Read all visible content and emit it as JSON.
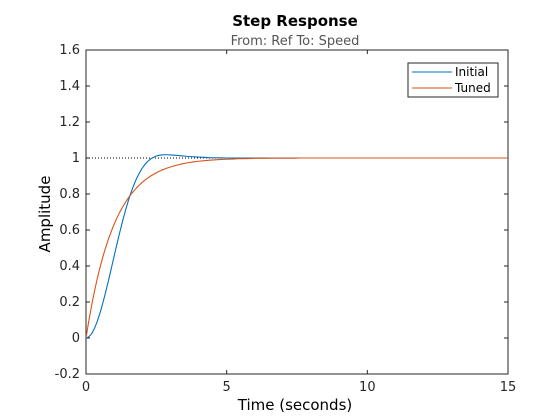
{
  "chart_data": {
    "type": "line",
    "title": "Step Response",
    "subtitle": "From: Ref  To: Speed",
    "xlabel": "Time (seconds)",
    "ylabel": "Amplitude",
    "xlim": [
      0,
      15
    ],
    "ylim": [
      -0.2,
      1.6
    ],
    "xticks": [
      "0",
      "5",
      "10",
      "15"
    ],
    "yticks": [
      "-0.2",
      "0",
      "0.2",
      "0.4",
      "0.6",
      "0.8",
      "1",
      "1.2",
      "1.4",
      "1.6"
    ],
    "grid": false,
    "legend_location": "top-right",
    "reference_line": {
      "y": 1,
      "style": "dotted",
      "color": "#000000"
    },
    "series": [
      {
        "name": "Initial",
        "color": "#0072BD",
        "x": [
          0,
          0.1,
          0.2,
          0.3,
          0.4,
          0.5,
          0.6,
          0.7,
          0.8,
          0.9,
          1.0,
          1.1,
          1.2,
          1.3,
          1.4,
          1.5,
          1.6,
          1.7,
          1.8,
          1.9,
          2.0,
          2.1,
          2.2,
          2.3,
          2.4,
          2.5,
          2.6,
          2.7,
          2.8,
          2.9,
          3.0,
          3.2,
          3.4,
          3.6,
          3.8,
          4.0,
          4.2,
          4.4,
          4.6,
          4.8,
          5.0,
          5.2,
          5.4,
          5.6,
          5.8,
          6.0,
          6.2,
          6.4,
          6.6,
          6.8,
          7.0,
          7.2,
          7.4,
          7.6,
          7.8,
          8.0,
          8.2,
          8.4,
          8.6,
          8.8,
          9.0,
          9.2,
          9.4,
          9.6,
          9.8,
          10.0,
          10.2,
          10.4,
          10.6,
          10.8,
          11.0,
          11.2,
          11.4,
          11.6,
          11.8,
          12.0,
          12.2,
          12.4,
          12.6,
          12.8,
          13.0,
          13.2,
          13.4,
          13.6,
          13.8,
          14.0,
          14.2,
          14.4,
          14.6,
          14.8,
          15.0
        ],
        "y": [
          0.0,
          0.006,
          0.024,
          0.053,
          0.092,
          0.14,
          0.195,
          0.256,
          0.32,
          0.387,
          0.455,
          0.522,
          0.587,
          0.649,
          0.707,
          0.76,
          0.808,
          0.85,
          0.887,
          0.918,
          0.944,
          0.965,
          0.982,
          0.995,
          1.004,
          1.011,
          1.015,
          1.017,
          1.018,
          1.018,
          1.017,
          1.015,
          1.012,
          1.009,
          1.007,
          1.005,
          1.004,
          1.002,
          1.001,
          1.001,
          1.0,
          1.0,
          1.0,
          1.0,
          1.0,
          1.0,
          1.0,
          1.0,
          1.0,
          1.0,
          1.0,
          1.0,
          1.0,
          1.0,
          1.0,
          1.0,
          1.0,
          1.0,
          1.0,
          1.0,
          1.0,
          1.0,
          1.0,
          1.0,
          1.0,
          1.0,
          1.0,
          1.0,
          1.0,
          1.0,
          1.0,
          1.0,
          1.0,
          1.0,
          1.0,
          1.0,
          1.0,
          1.0,
          1.0,
          1.0,
          1.0,
          1.0,
          1.0,
          1.0,
          1.0,
          1.0,
          1.0,
          1.0,
          1.0,
          1.0,
          1.0
        ]
      },
      {
        "name": "Tuned",
        "color": "#D95319",
        "x": [
          0,
          0.1,
          0.2,
          0.3,
          0.4,
          0.5,
          0.6,
          0.7,
          0.8,
          0.9,
          1.0,
          1.1,
          1.2,
          1.3,
          1.4,
          1.5,
          1.6,
          1.7,
          1.8,
          1.9,
          2.0,
          2.1,
          2.2,
          2.3,
          2.4,
          2.5,
          2.6,
          2.7,
          2.8,
          2.9,
          3.0,
          3.2,
          3.4,
          3.6,
          3.8,
          4.0,
          4.2,
          4.4,
          4.6,
          4.8,
          5.0,
          5.2,
          5.4,
          5.6,
          5.8,
          6.0,
          6.2,
          6.4,
          6.6,
          6.8,
          7.0,
          7.2,
          7.4,
          7.6,
          7.8,
          8.0,
          8.2,
          8.4,
          8.6,
          8.8,
          9.0,
          9.2,
          9.4,
          9.6,
          9.8,
          10.0,
          10.2,
          10.4,
          10.6,
          10.8,
          11.0,
          11.2,
          11.4,
          11.6,
          11.8,
          12.0,
          12.2,
          12.4,
          12.6,
          12.8,
          13.0,
          13.2,
          13.4,
          13.6,
          13.8,
          14.0,
          14.2,
          14.4,
          14.6,
          14.8,
          15.0
        ],
        "y": [
          0.0,
          0.095,
          0.181,
          0.259,
          0.33,
          0.393,
          0.451,
          0.503,
          0.551,
          0.593,
          0.632,
          0.667,
          0.699,
          0.727,
          0.753,
          0.777,
          0.798,
          0.817,
          0.835,
          0.85,
          0.865,
          0.878,
          0.889,
          0.9,
          0.909,
          0.918,
          0.926,
          0.933,
          0.939,
          0.945,
          0.95,
          0.959,
          0.967,
          0.973,
          0.978,
          0.982,
          0.985,
          0.988,
          0.99,
          0.992,
          0.993,
          0.994,
          0.996,
          0.996,
          0.997,
          0.998,
          0.998,
          0.998,
          0.999,
          0.999,
          0.999,
          0.999,
          0.999,
          1.0,
          1.0,
          1.0,
          1.0,
          1.0,
          1.0,
          1.0,
          1.0,
          1.0,
          1.0,
          1.0,
          1.0,
          1.0,
          1.0,
          1.0,
          1.0,
          1.0,
          1.0,
          1.0,
          1.0,
          1.0,
          1.0,
          1.0,
          1.0,
          1.0,
          1.0,
          1.0,
          1.0,
          1.0,
          1.0,
          1.0,
          1.0,
          1.0,
          1.0,
          1.0,
          1.0,
          1.0,
          1.0
        ]
      }
    ]
  }
}
